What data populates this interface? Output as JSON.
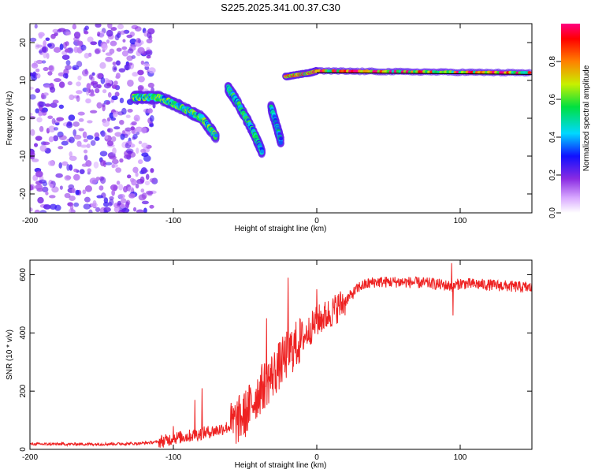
{
  "title": "S225.2025.341.00.37.C30",
  "chart_data": [
    {
      "type": "heatmap",
      "xlabel": "Height of straight line (km)",
      "ylabel": "Frequency (Hz)",
      "xlim": [
        -200,
        150
      ],
      "ylim": [
        -25,
        25
      ],
      "xticks": [
        -200,
        -100,
        0,
        100
      ],
      "yticks": [
        -20,
        -10,
        0,
        10,
        20
      ],
      "colorbar": {
        "label": "Normalized spectral amplitude",
        "range": [
          0,
          1
        ],
        "ticks": [
          0.0,
          0.2,
          0.4,
          0.6,
          0.8
        ]
      },
      "features": [
        {
          "name": "noise",
          "x_range": [
            -200,
            -125
          ],
          "y_range": [
            -25,
            25
          ],
          "amplitude": 0.15
        },
        {
          "name": "descending-trace-1",
          "points": [
            [
              -128,
              5.5
            ],
            [
              -110,
              5.5
            ],
            [
              -95,
              3
            ],
            [
              -80,
              0
            ],
            [
              -70,
              -5
            ]
          ],
          "amplitude": 0.5
        },
        {
          "name": "descending-trace-2",
          "points": [
            [
              -62,
              8
            ],
            [
              -55,
              4
            ],
            [
              -45,
              -3
            ],
            [
              -38,
              -9
            ]
          ],
          "amplitude": 0.45
        },
        {
          "name": "descending-trace-3",
          "points": [
            [
              -32,
              3
            ],
            [
              -28,
              -2
            ],
            [
              -25,
              -6
            ]
          ],
          "amplitude": 0.4
        },
        {
          "name": "steady-tone",
          "points": [
            [
              -22,
              11
            ],
            [
              -5,
              12
            ],
            [
              0,
              12.5
            ],
            [
              150,
              12
            ]
          ],
          "amplitude": 0.75
        }
      ]
    },
    {
      "type": "line",
      "xlabel": "Height of straight line (km)",
      "ylabel": "SNR (10 * v/v)",
      "xlim": [
        -200,
        150
      ],
      "ylim": [
        0,
        650
      ],
      "xticks": [
        -200,
        -100,
        0,
        100
      ],
      "yticks": [
        0,
        200,
        400,
        600
      ],
      "series": [
        {
          "name": "SNR",
          "color": "#ee2222",
          "x": [
            -200,
            -150,
            -125,
            -112,
            -105,
            -100,
            -90,
            -80,
            -70,
            -60,
            -50,
            -40,
            -30,
            -20,
            -10,
            0,
            10,
            20,
            30,
            40,
            60,
            80,
            95,
            100,
            120,
            150
          ],
          "y": [
            18,
            18,
            20,
            25,
            30,
            38,
            45,
            55,
            65,
            80,
            120,
            200,
            260,
            330,
            380,
            440,
            470,
            510,
            560,
            575,
            575,
            570,
            560,
            570,
            565,
            555
          ],
          "spikes": [
            [
              -100,
              80
            ],
            [
              -85,
              170
            ],
            [
              -80,
              210
            ],
            [
              -35,
              450
            ],
            [
              -20,
              590
            ],
            [
              0,
              550
            ],
            [
              94,
              640
            ],
            [
              95,
              460
            ]
          ]
        }
      ]
    }
  ]
}
